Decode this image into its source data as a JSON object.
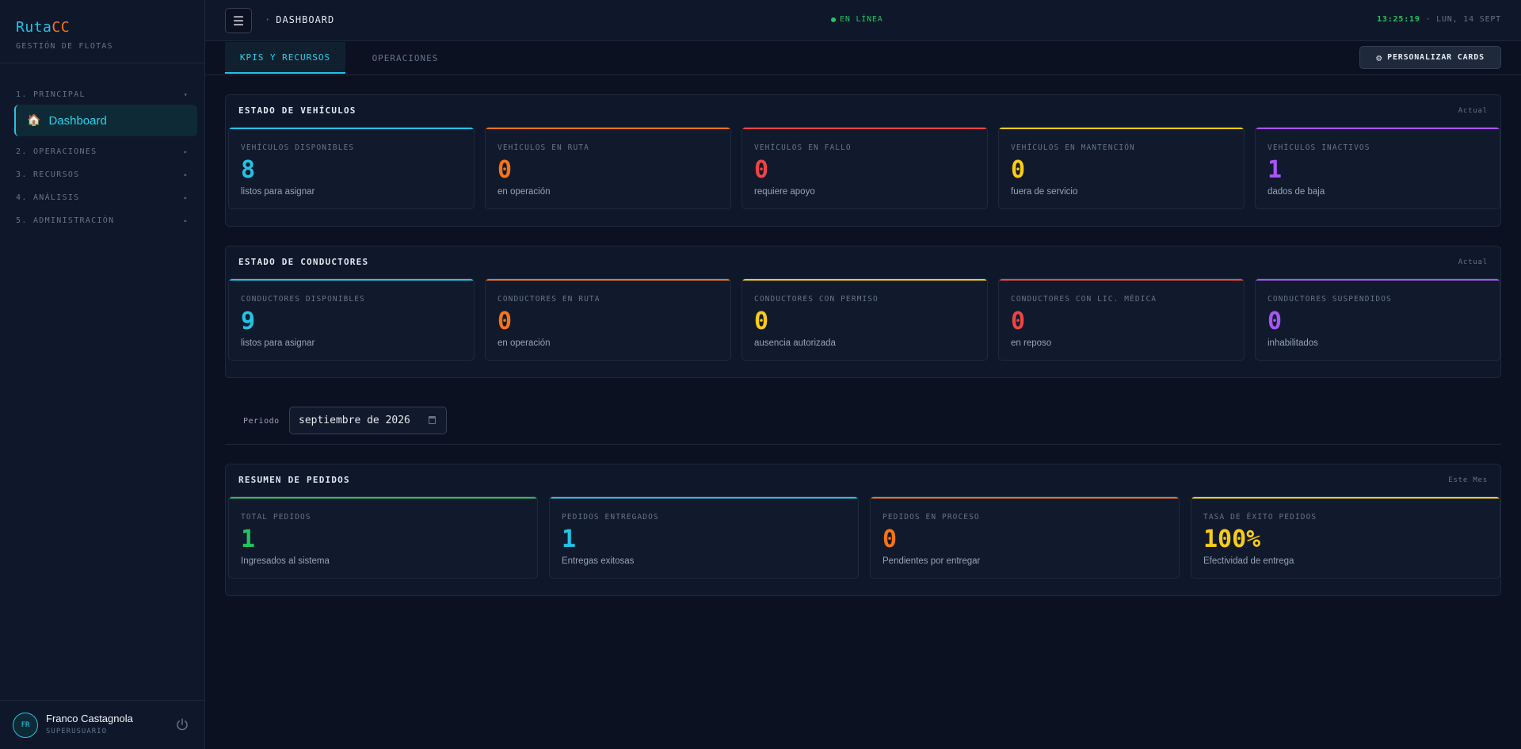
{
  "colors": {
    "cyan": "#22c3e6",
    "orange": "#f97316",
    "red": "#ef4444",
    "yellow": "#facc15",
    "purple": "#a855f7",
    "green": "#22c55e"
  },
  "brand": {
    "name_a": "Ruta",
    "name_b": "CC",
    "subtitle": "GESTIÓN DE FLOTAS"
  },
  "sidebar": {
    "groups": [
      {
        "label": "1. PRINCIPAL",
        "arrow": "▾"
      },
      {
        "label": "2. OPERACIONES",
        "arrow": "▸"
      },
      {
        "label": "3. RECURSOS",
        "arrow": "▸"
      },
      {
        "label": "4. ANÁLISIS",
        "arrow": "▸"
      },
      {
        "label": "5. ADMINISTRACIÓN",
        "arrow": "▸"
      }
    ],
    "active_item": {
      "icon": "🏠",
      "label": "Dashboard"
    }
  },
  "user": {
    "initials": "FR",
    "name": "Franco Castagnola",
    "role": "SUPERUSUARIO",
    "icon": "power-icon"
  },
  "topbar": {
    "menu_icon": "☰",
    "breadcrumb_dot": "·",
    "breadcrumb": "DASHBOARD",
    "status": "EN LÍNEA",
    "time": "13:25:19",
    "date": "· LUN, 14 SEPT"
  },
  "tabs": [
    {
      "label": "KPIS Y RECURSOS",
      "active": true
    },
    {
      "label": "OPERACIONES",
      "active": false
    }
  ],
  "customize_button": {
    "icon": "⚙",
    "label": "PERSONALIZAR CARDS"
  },
  "vehicles": {
    "title": "ESTADO DE VEHÍCULOS",
    "tag": "Actual",
    "cards": [
      {
        "label": "VEHÍCULOS DISPONIBLES",
        "value": "8",
        "sub": "listos para asignar",
        "color": "#22c3e6"
      },
      {
        "label": "VEHÍCULOS EN RUTA",
        "value": "0",
        "sub": "en operación",
        "color": "#f97316"
      },
      {
        "label": "VEHÍCULOS EN FALLO",
        "value": "0",
        "sub": "requiere apoyo",
        "color": "#ef4444"
      },
      {
        "label": "VEHÍCULOS EN MANTENCIÓN",
        "value": "0",
        "sub": "fuera de servicio",
        "color": "#facc15"
      },
      {
        "label": "VEHÍCULOS INACTIVOS",
        "value": "1",
        "sub": "dados de baja",
        "color": "#a855f7"
      }
    ]
  },
  "drivers": {
    "title": "ESTADO DE CONDUCTORES",
    "tag": "Actual",
    "cards": [
      {
        "label": "CONDUCTORES DISPONIBLES",
        "value": "9",
        "sub": "listos para asignar",
        "color": "#22c3e6"
      },
      {
        "label": "CONDUCTORES EN RUTA",
        "value": "0",
        "sub": "en operación",
        "color": "#f97316"
      },
      {
        "label": "CONDUCTORES CON PERMISO",
        "value": "0",
        "sub": "ausencia autorizada",
        "color": "#facc15"
      },
      {
        "label": "CONDUCTORES CON LIC. MÉDICA",
        "value": "0",
        "sub": "en reposo",
        "color": "#ef4444"
      },
      {
        "label": "CONDUCTORES SUSPENDIDOS",
        "value": "0",
        "sub": "inhabilitados",
        "color": "#a855f7"
      }
    ]
  },
  "period": {
    "label": "Periodo",
    "value": "septiembre de 2026",
    "icon": "calendar-icon"
  },
  "orders": {
    "title": "RESUMEN DE PEDIDOS",
    "tag": "Este Mes",
    "cards": [
      {
        "label": "TOTAL PEDIDOS",
        "value": "1",
        "sub": "Ingresados al sistema",
        "color": "#22c55e"
      },
      {
        "label": "PEDIDOS ENTREGADOS",
        "value": "1",
        "sub": "Entregas exitosas",
        "color": "#22c3e6"
      },
      {
        "label": "PEDIDOS EN PROCESO",
        "value": "0",
        "sub": "Pendientes por entregar",
        "color": "#f97316"
      },
      {
        "label": "TASA DE ÉXITO PEDIDOS",
        "value": "100%",
        "sub": "Efectividad de entrega",
        "color": "#facc15"
      }
    ]
  }
}
